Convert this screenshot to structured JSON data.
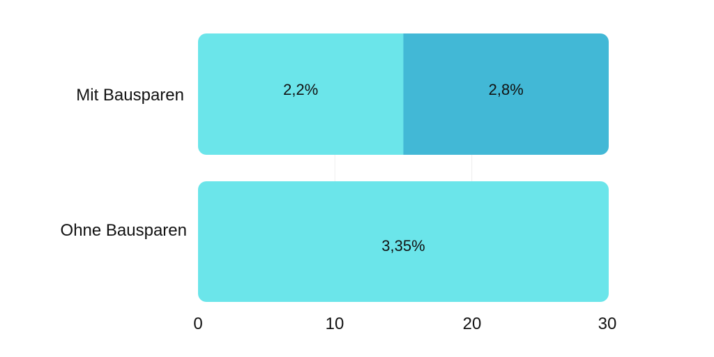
{
  "chart_data": {
    "type": "bar",
    "orientation": "horizontal",
    "stacked": true,
    "categories": [
      "Mit Bausparen",
      "Ohne Bausparen"
    ],
    "series": [
      {
        "color": "#6be5ea",
        "values": [
          15,
          30
        ],
        "labels": [
          "2,2%",
          "3,35%"
        ]
      },
      {
        "color": "#42b8d6",
        "values": [
          15,
          0
        ],
        "labels": [
          "2,8%",
          ""
        ]
      }
    ],
    "xlim": [
      0,
      30
    ],
    "xticks": [
      "0",
      "10",
      "20",
      "30"
    ],
    "grid": true,
    "legend": "none"
  }
}
